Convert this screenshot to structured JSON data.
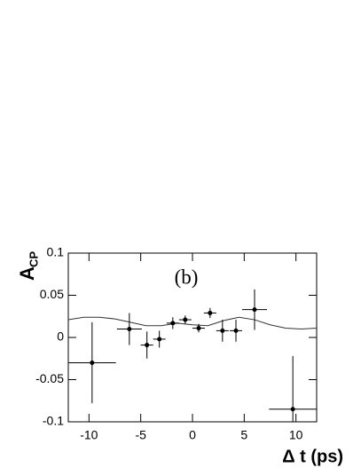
{
  "chart_data": {
    "type": "scatter",
    "annotation": "(b)",
    "y_label": "A",
    "y_label_sub": "CP",
    "x_label": "Δ t (ps)",
    "color": "#000000",
    "points": {
      "x": [
        -9.7,
        -6.1,
        -4.4,
        -3.2,
        -1.9,
        -0.7,
        0.6,
        1.7,
        2.9,
        4.2,
        6.0,
        9.7
      ],
      "y": [
        -0.03,
        0.01,
        -0.009,
        -0.002,
        0.017,
        0.021,
        0.011,
        0.029,
        0.008,
        0.008,
        0.033,
        -0.085
      ],
      "xerr": [
        2.3,
        1.2,
        0.6,
        0.6,
        0.6,
        0.6,
        0.6,
        0.6,
        0.6,
        0.6,
        1.2,
        2.3
      ],
      "yerr": [
        0.048,
        0.019,
        0.016,
        0.01,
        0.007,
        0.005,
        0.005,
        0.006,
        0.013,
        0.013,
        0.024,
        0.063
      ]
    },
    "curve": {
      "x": [
        -12,
        -10.5,
        -9,
        -7.5,
        -6,
        -4.5,
        -3,
        -1.5,
        0,
        1.5,
        3,
        4.5,
        6,
        7.5,
        9,
        10.5,
        12
      ],
      "y": [
        0.021,
        0.024,
        0.024,
        0.022,
        0.018,
        0.014,
        0.014,
        0.017,
        0.015,
        0.014,
        0.02,
        0.024,
        0.021,
        0.015,
        0.011,
        0.01,
        0.011
      ]
    },
    "xlim": [
      -12,
      12
    ],
    "ylim": [
      -0.1,
      0.1
    ],
    "xticks": [
      -10,
      -5,
      0,
      5,
      10
    ],
    "yticks": [
      -0.1,
      -0.05,
      0,
      0.05,
      0.1
    ]
  }
}
